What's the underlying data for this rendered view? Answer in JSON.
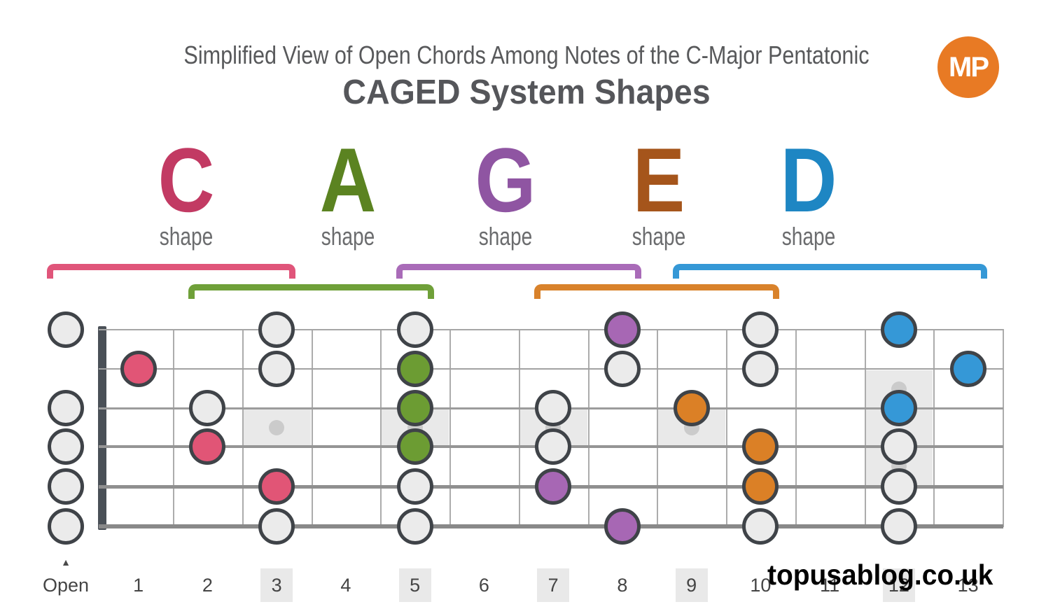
{
  "header": {
    "title": "Simplified View of Open Chords Among Notes of the C-Major Pentatonic",
    "subtitle": "CAGED System Shapes",
    "logo_text": "MP",
    "logo_color": "#E87A24"
  },
  "shapes": [
    {
      "letter": "C",
      "label": "shape",
      "letter_color": "#C23A63",
      "bracket_color": "#E0557A",
      "dot_color": "#E15576",
      "bracket_from_fret": 0,
      "bracket_to_fret": 3,
      "bracket_row": 1
    },
    {
      "letter": "A",
      "label": "shape",
      "letter_color": "#5B8321",
      "bracket_color": "#6FA039",
      "dot_color": "#6C9C33",
      "bracket_from_fret": 2,
      "bracket_to_fret": 5,
      "bracket_row": 2
    },
    {
      "letter": "G",
      "label": "shape",
      "letter_color": "#8F55A2",
      "bracket_color": "#A96BB8",
      "dot_color": "#A767B4",
      "bracket_from_fret": 5,
      "bracket_to_fret": 8,
      "bracket_row": 1
    },
    {
      "letter": "E",
      "label": "shape",
      "letter_color": "#A5551B",
      "bracket_color": "#D9822B",
      "dot_color": "#DB8026",
      "bracket_from_fret": 7,
      "bracket_to_fret": 10,
      "bracket_row": 2
    },
    {
      "letter": "D",
      "label": "shape",
      "letter_color": "#1E86C3",
      "bracket_color": "#3598D6",
      "dot_color": "#3598D7",
      "bracket_from_fret": 9,
      "bracket_to_fret": 13,
      "bracket_row": 1
    }
  ],
  "fretboard": {
    "num_frets": 13,
    "open_label": "Open",
    "open_triangle": "▲",
    "fret_labels": [
      "1",
      "2",
      "3",
      "4",
      "5",
      "6",
      "7",
      "8",
      "9",
      "10",
      "11",
      "12",
      "13"
    ],
    "single_inlay_frets": [
      3,
      5,
      7,
      9
    ],
    "double_inlay_fret": 12,
    "highlighted_label_frets": [
      3,
      5,
      7,
      9,
      12
    ],
    "open_string_notes": [
      1,
      3,
      4,
      5,
      6
    ],
    "notes": [
      {
        "fret": 0,
        "string": 1,
        "shape": "scale"
      },
      {
        "fret": 0,
        "string": 3,
        "shape": "scale"
      },
      {
        "fret": 0,
        "string": 4,
        "shape": "scale"
      },
      {
        "fret": 0,
        "string": 5,
        "shape": "scale"
      },
      {
        "fret": 0,
        "string": 6,
        "shape": "scale"
      },
      {
        "fret": 1,
        "string": 2,
        "shape": "C"
      },
      {
        "fret": 2,
        "string": 3,
        "shape": "scale"
      },
      {
        "fret": 2,
        "string": 4,
        "shape": "C"
      },
      {
        "fret": 3,
        "string": 1,
        "shape": "scale"
      },
      {
        "fret": 3,
        "string": 2,
        "shape": "scale"
      },
      {
        "fret": 3,
        "string": 5,
        "shape": "C"
      },
      {
        "fret": 3,
        "string": 6,
        "shape": "scale"
      },
      {
        "fret": 5,
        "string": 1,
        "shape": "scale"
      },
      {
        "fret": 5,
        "string": 2,
        "shape": "A"
      },
      {
        "fret": 5,
        "string": 3,
        "shape": "A"
      },
      {
        "fret": 5,
        "string": 4,
        "shape": "A"
      },
      {
        "fret": 5,
        "string": 5,
        "shape": "scale"
      },
      {
        "fret": 5,
        "string": 6,
        "shape": "scale"
      },
      {
        "fret": 7,
        "string": 3,
        "shape": "scale"
      },
      {
        "fret": 7,
        "string": 4,
        "shape": "scale"
      },
      {
        "fret": 7,
        "string": 5,
        "shape": "G"
      },
      {
        "fret": 8,
        "string": 1,
        "shape": "G"
      },
      {
        "fret": 8,
        "string": 2,
        "shape": "scale"
      },
      {
        "fret": 8,
        "string": 6,
        "shape": "G"
      },
      {
        "fret": 9,
        "string": 3,
        "shape": "E"
      },
      {
        "fret": 10,
        "string": 1,
        "shape": "scale"
      },
      {
        "fret": 10,
        "string": 2,
        "shape": "scale"
      },
      {
        "fret": 10,
        "string": 4,
        "shape": "E"
      },
      {
        "fret": 10,
        "string": 5,
        "shape": "E"
      },
      {
        "fret": 10,
        "string": 6,
        "shape": "scale"
      },
      {
        "fret": 12,
        "string": 1,
        "shape": "D"
      },
      {
        "fret": 12,
        "string": 3,
        "shape": "D"
      },
      {
        "fret": 12,
        "string": 4,
        "shape": "scale"
      },
      {
        "fret": 12,
        "string": 5,
        "shape": "scale"
      },
      {
        "fret": 12,
        "string": 6,
        "shape": "scale"
      },
      {
        "fret": 13,
        "string": 2,
        "shape": "D"
      }
    ],
    "colors": {
      "scale_fill": "#EBEBEB",
      "outline": "#3F4348",
      "fret_line": "#ACACAC",
      "nut": "#4A5057",
      "inlay": "#E9E9E9",
      "inlay_dot": "#CBCBCB"
    }
  },
  "watermark": "topusablog.co.uk"
}
